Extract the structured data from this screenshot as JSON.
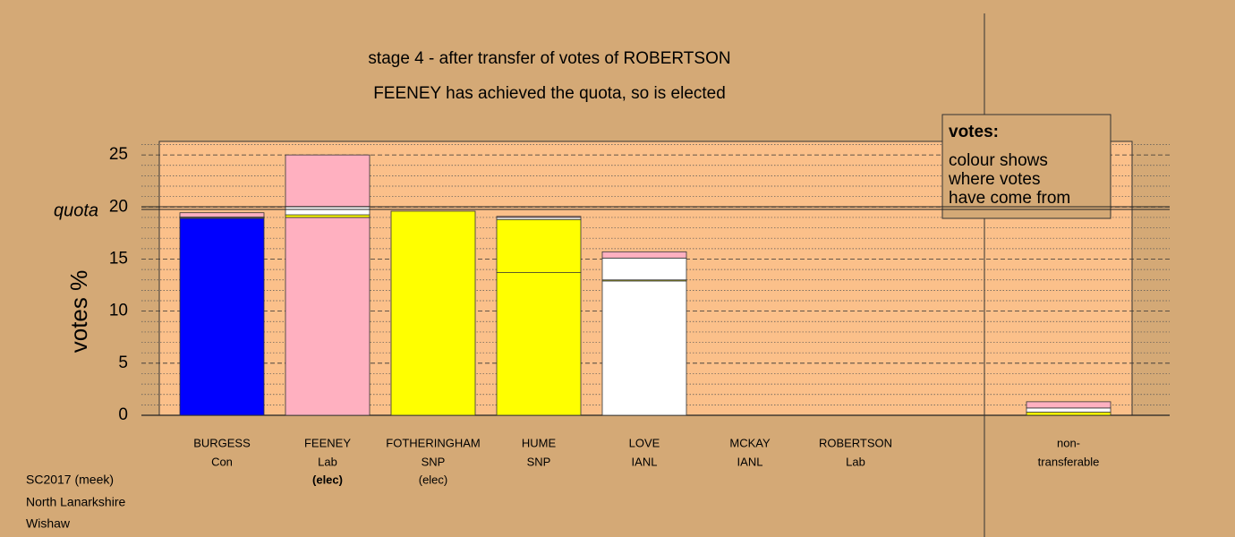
{
  "chart_data": {
    "type": "bar",
    "title": "stage 4 - after transfer of votes of ROBERTSON",
    "subtitle": "FEENEY has achieved the quota, so is elected",
    "y_label": "votes %",
    "categories": [
      "BURGESS",
      "FEENEY",
      "FOTHERINGHAM",
      "HUME",
      "LOVE",
      "MCKAY",
      "ROBERTSON",
      "non-"
    ],
    "sublabels": [
      "Con",
      "Lab",
      "SNP",
      "SNP",
      "IANL",
      "IANL",
      "Lab",
      "transferable"
    ],
    "notes": [
      null,
      "(elec)",
      "(elec)",
      null,
      null,
      null,
      null,
      null
    ],
    "notes_bold": [
      false,
      true,
      false,
      false,
      false,
      false,
      false,
      false
    ],
    "series": [
      {
        "colors": [
          "#0000ff",
          "#ffb0c0",
          "#ffff00",
          "#ffff00",
          "#ffffff",
          "#ffffff",
          "#ffb0c0",
          "#ffffff"
        ],
        "values": [
          18.9,
          19.0,
          19.6,
          13.7,
          12.9,
          0,
          0,
          0
        ]
      },
      {
        "color": "#ffff00",
        "values": [
          0.05,
          0.25,
          0,
          5.1,
          0.1,
          0,
          0,
          0.3
        ]
      },
      {
        "color": "#ffffff",
        "values": [
          0.1,
          0.8,
          0,
          0.2,
          2.1,
          0,
          0,
          0.4
        ]
      },
      {
        "color": "#ffb0c0",
        "values": [
          0.4,
          4.95,
          0,
          0.1,
          0.6,
          0,
          0,
          0.6
        ]
      }
    ],
    "quota": {
      "value": 19.9,
      "label": "quota"
    },
    "ylim": [
      0,
      26.3
    ],
    "yticks": [
      0,
      5,
      10,
      15,
      20,
      25
    ],
    "minor_yticks": [
      1,
      2,
      3,
      4,
      6,
      7,
      8,
      9,
      11,
      12,
      13,
      14,
      16,
      17,
      18,
      19,
      21,
      22,
      23,
      24,
      26
    ],
    "grid": true,
    "legend": {
      "title": "votes:",
      "lines": [
        "colour shows",
        "where votes",
        "have come from"
      ]
    },
    "footer": [
      "SC2017 (meek)",
      "North Lanarkshire",
      "Wishaw"
    ]
  }
}
